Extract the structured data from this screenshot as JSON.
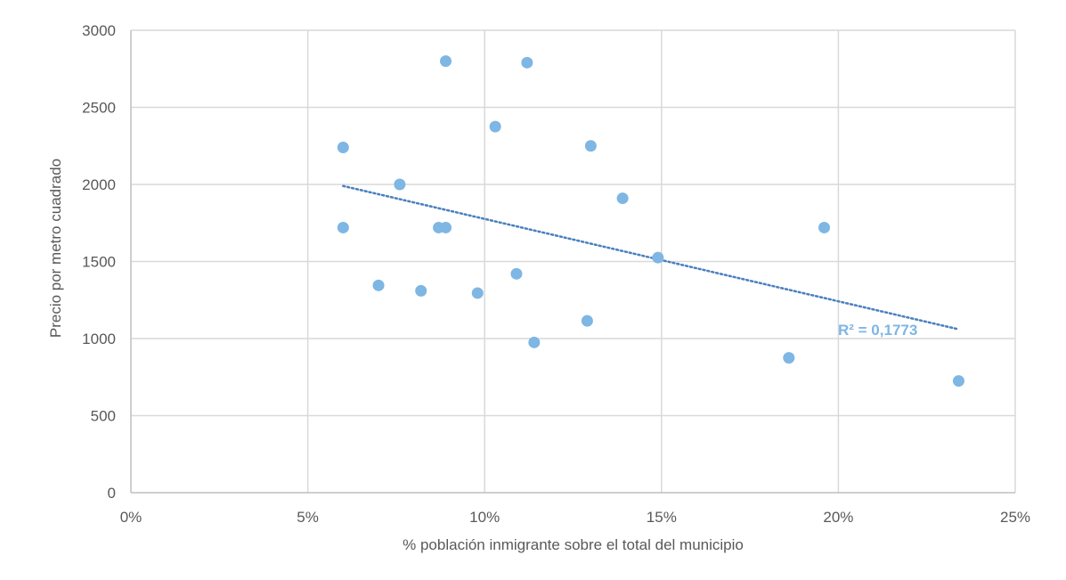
{
  "chart_data": {
    "type": "scatter",
    "title": "",
    "xlabel": "% población inmigrante sobre el total del municipio",
    "ylabel": "Precio por metro cuadrado",
    "xlim": [
      0,
      25
    ],
    "ylim": [
      0,
      3000
    ],
    "x_ticks": [
      0,
      5,
      10,
      15,
      20,
      25
    ],
    "x_tick_labels": [
      "0%",
      "5%",
      "10%",
      "15%",
      "20%",
      "25%"
    ],
    "y_ticks": [
      0,
      500,
      1000,
      1500,
      2000,
      2500,
      3000
    ],
    "y_tick_labels": [
      "0",
      "500",
      "1000",
      "1500",
      "2000",
      "2500",
      "3000"
    ],
    "grid": true,
    "legend": "none",
    "series": [
      {
        "points": [
          {
            "x": 6.0,
            "y": 2240
          },
          {
            "x": 6.0,
            "y": 1720
          },
          {
            "x": 7.0,
            "y": 1345
          },
          {
            "x": 7.6,
            "y": 2000
          },
          {
            "x": 8.2,
            "y": 1310
          },
          {
            "x": 8.7,
            "y": 1720
          },
          {
            "x": 8.9,
            "y": 1720
          },
          {
            "x": 8.9,
            "y": 2800
          },
          {
            "x": 9.8,
            "y": 1295
          },
          {
            "x": 10.3,
            "y": 2375
          },
          {
            "x": 10.9,
            "y": 1420
          },
          {
            "x": 11.2,
            "y": 2790
          },
          {
            "x": 11.4,
            "y": 975
          },
          {
            "x": 12.9,
            "y": 1115
          },
          {
            "x": 13.0,
            "y": 2250
          },
          {
            "x": 13.9,
            "y": 1910
          },
          {
            "x": 14.9,
            "y": 1525
          },
          {
            "x": 18.6,
            "y": 875
          },
          {
            "x": 19.6,
            "y": 1720
          },
          {
            "x": 23.4,
            "y": 725
          }
        ]
      }
    ],
    "trendline": {
      "type": "linear",
      "x_start": 6.0,
      "y_start": 1990,
      "x_end": 23.4,
      "y_end": 1060,
      "label": "R² = 0,1773"
    },
    "colors": {
      "marker": "#7eb6e4",
      "trendline": "#4a7fbe",
      "trend_label": "#7eb6e4",
      "grid": "#d9d9d9",
      "text": "#595959"
    }
  }
}
